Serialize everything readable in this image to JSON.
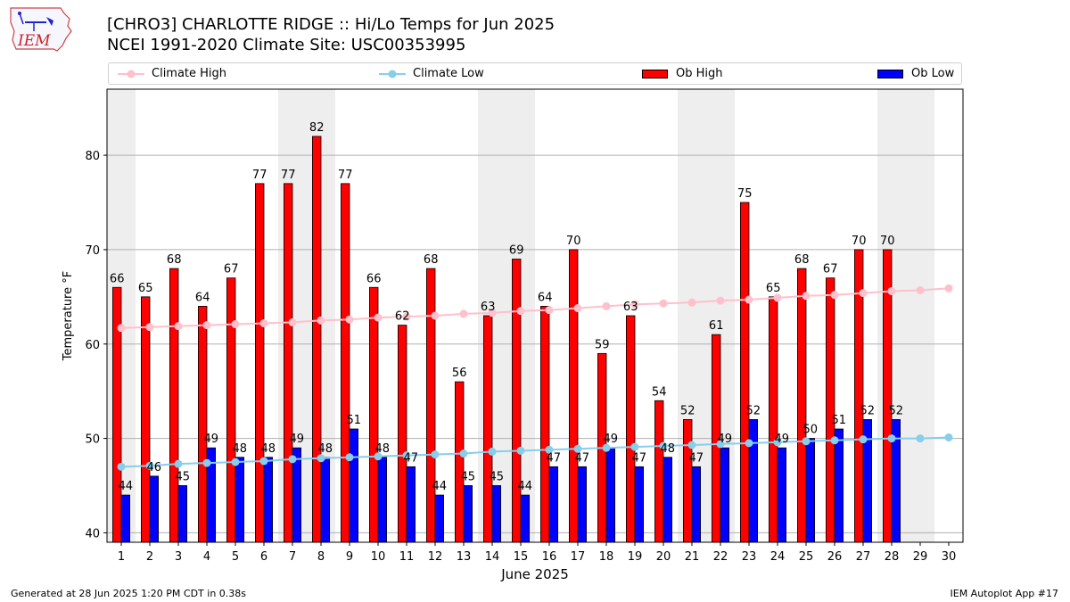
{
  "header": {
    "title_line1": "[CHRO3] CHARLOTTE RIDGE :: Hi/Lo Temps for Jun 2025",
    "title_line2": "NCEI 1991-2020 Climate Site: USC00353995",
    "logo_text": "IEM"
  },
  "footer": {
    "generated": "Generated at 28 Jun 2025 1:20 PM CDT in 0.38s",
    "app": "IEM Autoplot App #17"
  },
  "colors": {
    "ob_high": "#ff0000",
    "ob_low": "#0000ff",
    "climate_high": "#ffc0cb",
    "climate_low": "#87ceeb",
    "weekend_shade": "#eeeeee",
    "grid": "#b0b0b0"
  },
  "chart_data": {
    "type": "bar",
    "title": "[CHRO3] CHARLOTTE RIDGE :: Hi/Lo Temps for Jun 2025",
    "subtitle": "NCEI 1991-2020 Climate Site: USC00353995",
    "xlabel": "June 2025",
    "ylabel": "Temperature °F",
    "ylim": [
      39,
      87
    ],
    "yticks": [
      40,
      50,
      60,
      70,
      80
    ],
    "grid": true,
    "legend_position": "top",
    "x": [
      1,
      2,
      3,
      4,
      5,
      6,
      7,
      8,
      9,
      10,
      11,
      12,
      13,
      14,
      15,
      16,
      17,
      18,
      19,
      20,
      21,
      22,
      23,
      24,
      25,
      26,
      27,
      28,
      29,
      30
    ],
    "shaded_days": [
      1,
      7,
      8,
      14,
      15,
      21,
      22,
      28,
      29
    ],
    "series": [
      {
        "name": "Climate High",
        "kind": "line",
        "values": [
          61.7,
          61.8,
          61.9,
          62.0,
          62.1,
          62.2,
          62.3,
          62.5,
          62.6,
          62.8,
          62.9,
          63.0,
          63.2,
          63.3,
          63.5,
          63.6,
          63.8,
          64.0,
          64.2,
          64.3,
          64.4,
          64.6,
          64.7,
          64.9,
          65.1,
          65.2,
          65.4,
          65.6,
          65.7,
          65.9
        ]
      },
      {
        "name": "Climate Low",
        "kind": "line",
        "values": [
          47.0,
          47.1,
          47.3,
          47.4,
          47.5,
          47.6,
          47.8,
          47.9,
          48.0,
          48.1,
          48.2,
          48.3,
          48.4,
          48.6,
          48.7,
          48.8,
          48.9,
          49.0,
          49.1,
          49.2,
          49.3,
          49.4,
          49.5,
          49.6,
          49.7,
          49.8,
          49.9,
          50.0,
          50.0,
          50.1
        ]
      },
      {
        "name": "Ob High",
        "kind": "bar",
        "values": [
          66,
          65,
          68,
          64,
          67,
          77,
          77,
          82,
          77,
          66,
          62,
          68,
          56,
          63,
          69,
          64,
          70,
          59,
          63,
          54,
          52,
          61,
          75,
          65,
          68,
          67,
          70,
          70,
          null,
          null
        ]
      },
      {
        "name": "Ob Low",
        "kind": "bar",
        "values": [
          44,
          46,
          45,
          49,
          48,
          48,
          49,
          48,
          51,
          48,
          47,
          44,
          45,
          45,
          44,
          47,
          47,
          49,
          47,
          48,
          47,
          49,
          52,
          49,
          50,
          51,
          52,
          52,
          null,
          null
        ]
      }
    ]
  }
}
